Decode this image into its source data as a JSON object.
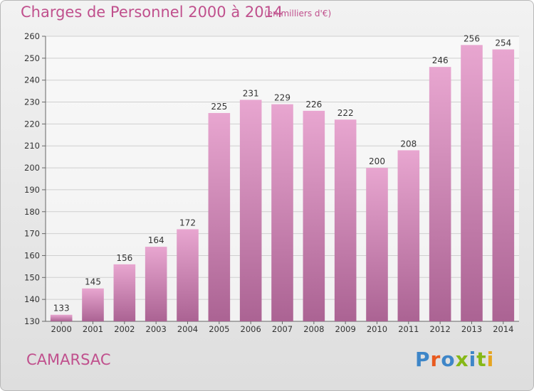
{
  "header": {
    "title": "Charges de Personnel 2000 à 2014",
    "unit": "(en milliers d'€)"
  },
  "footer": {
    "commune": "CAMARSAC",
    "brand": "Proxiti"
  },
  "colors": {
    "text_accent": "#c0508d",
    "bar_top": "#e8a6d0",
    "bar_bottom": "#ab6393",
    "logo_letters": [
      "#3e86c8",
      "#e85a1f",
      "#3e86c8",
      "#86b817",
      "#3e86c8",
      "#86b817",
      "#e6a521"
    ]
  },
  "chart_data": {
    "type": "bar",
    "categories": [
      "2000",
      "2001",
      "2002",
      "2003",
      "2004",
      "2005",
      "2006",
      "2007",
      "2008",
      "2009",
      "2010",
      "2011",
      "2012",
      "2013",
      "2014"
    ],
    "values": [
      133,
      145,
      156,
      164,
      172,
      225,
      231,
      229,
      226,
      222,
      200,
      208,
      246,
      256,
      254
    ],
    "data_labels": [
      "133",
      "145",
      "156",
      "164",
      "172",
      "225",
      "231",
      "229",
      "226",
      "222",
      "200",
      "208",
      "246",
      "256",
      "254"
    ],
    "title": "Charges de Personnel 2000 à 2014",
    "subtitle": "(en milliers d'€)",
    "xlabel": "",
    "ylabel": "",
    "ylim": [
      130,
      260
    ],
    "yticks": [
      130,
      140,
      150,
      160,
      170,
      180,
      190,
      200,
      210,
      220,
      230,
      240,
      250,
      260
    ],
    "grid": true,
    "legend": "none"
  }
}
